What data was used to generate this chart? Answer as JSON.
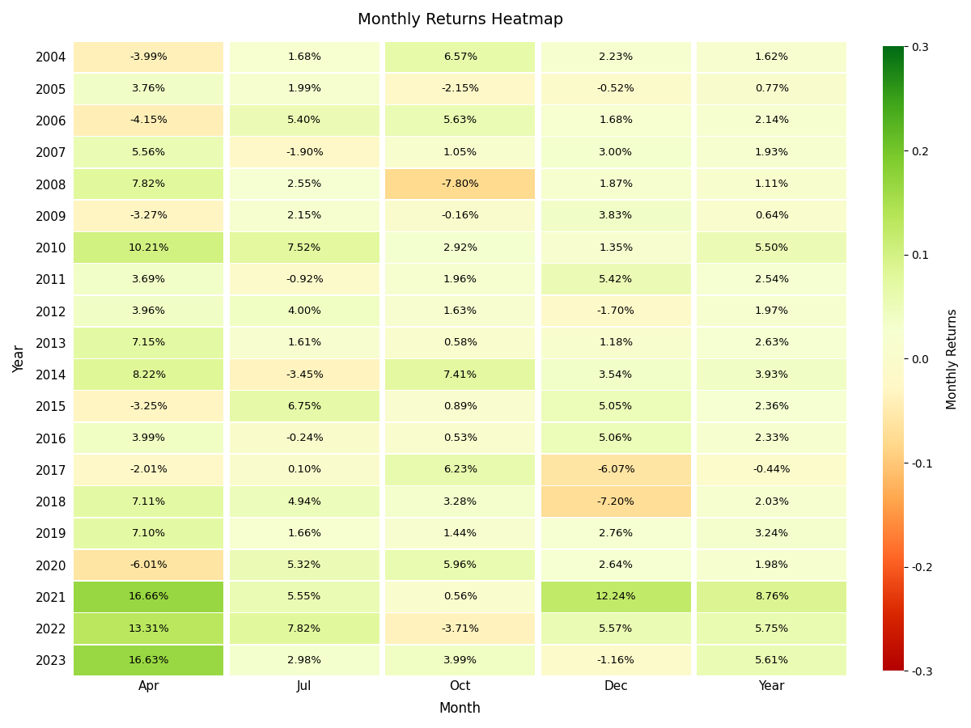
{
  "title": "Monthly Returns Heatmap",
  "xlabel": "Month",
  "ylabel": "Year",
  "colorbar_label": "Monthly Returns",
  "columns": [
    "Apr",
    "Jul",
    "Oct",
    "Dec",
    "Year"
  ],
  "years": [
    2004,
    2005,
    2006,
    2007,
    2008,
    2009,
    2010,
    2011,
    2012,
    2013,
    2014,
    2015,
    2016,
    2017,
    2018,
    2019,
    2020,
    2021,
    2022,
    2023
  ],
  "data": [
    [
      -3.99,
      1.68,
      6.57,
      2.23,
      1.62
    ],
    [
      3.76,
      1.99,
      -2.15,
      -0.52,
      0.77
    ],
    [
      -4.15,
      5.4,
      5.63,
      1.68,
      2.14
    ],
    [
      5.56,
      -1.9,
      1.05,
      3.0,
      1.93
    ],
    [
      7.82,
      2.55,
      -7.8,
      1.87,
      1.11
    ],
    [
      -3.27,
      2.15,
      -0.16,
      3.83,
      0.64
    ],
    [
      10.21,
      7.52,
      2.92,
      1.35,
      5.5
    ],
    [
      3.69,
      -0.92,
      1.96,
      5.42,
      2.54
    ],
    [
      3.96,
      4.0,
      1.63,
      -1.7,
      1.97
    ],
    [
      7.15,
      1.61,
      0.58,
      1.18,
      2.63
    ],
    [
      8.22,
      -3.45,
      7.41,
      3.54,
      3.93
    ],
    [
      -3.25,
      6.75,
      0.89,
      5.05,
      2.36
    ],
    [
      3.99,
      -0.24,
      0.53,
      5.06,
      2.33
    ],
    [
      -2.01,
      0.1,
      6.23,
      -6.07,
      -0.44
    ],
    [
      7.11,
      4.94,
      3.28,
      -7.2,
      2.03
    ],
    [
      7.1,
      1.66,
      1.44,
      2.76,
      3.24
    ],
    [
      -6.01,
      5.32,
      5.96,
      2.64,
      1.98
    ],
    [
      16.66,
      5.55,
      0.56,
      12.24,
      8.76
    ],
    [
      13.31,
      7.82,
      -3.71,
      5.57,
      5.75
    ],
    [
      16.63,
      2.98,
      3.99,
      -1.16,
      5.61
    ]
  ],
  "vmin": -0.3,
  "vmax": 0.3,
  "figsize": [
    12.0,
    9.0
  ],
  "dpi": 100,
  "cbar_ticks": [
    -0.3,
    -0.2,
    -0.1,
    0.0,
    0.1,
    0.2,
    0.3
  ],
  "cbar_ticklabels": [
    "-0.3",
    "-0.2",
    "-0.1",
    "0.0",
    "0.1",
    "0.2",
    "0.3"
  ]
}
